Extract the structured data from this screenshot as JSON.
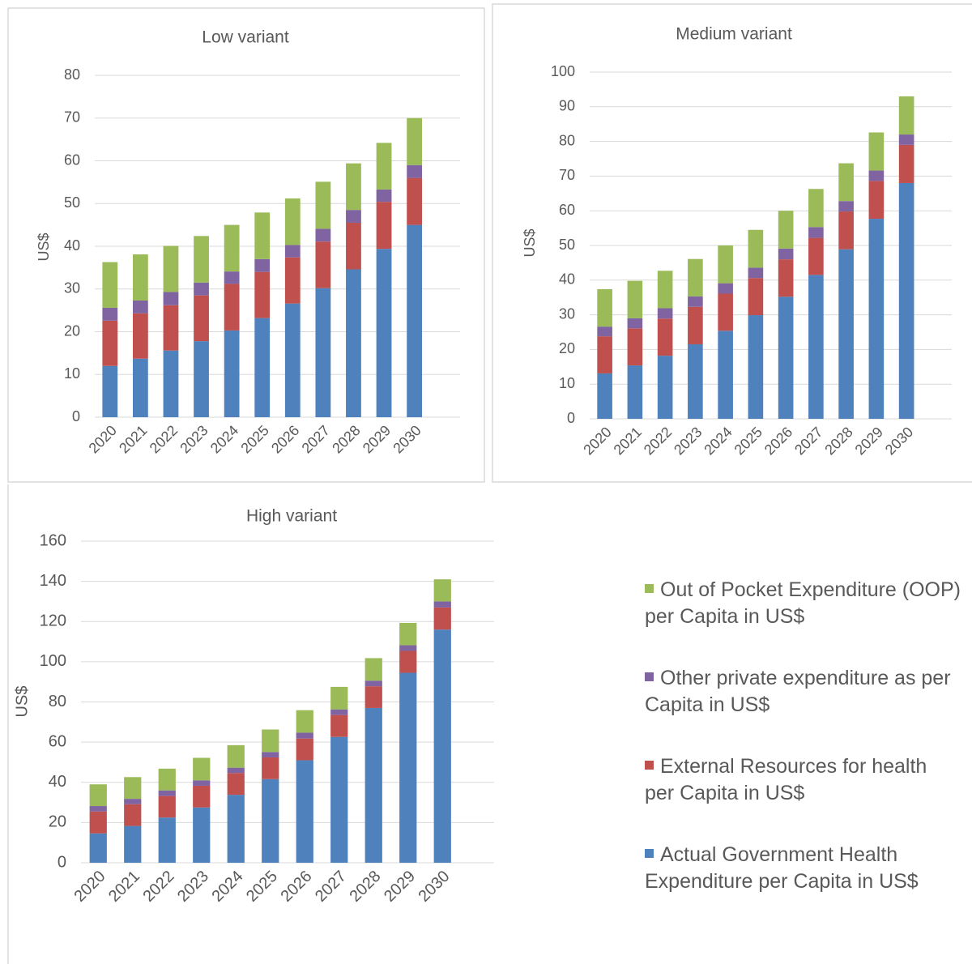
{
  "chart_data": [
    {
      "type": "bar",
      "stacked": true,
      "title": "Low variant",
      "ylabel": "US$",
      "categories": [
        "2020",
        "2021",
        "2022",
        "2023",
        "2024",
        "2025",
        "2026",
        "2027",
        "2028",
        "2029",
        "2030"
      ],
      "series": [
        {
          "color": "#4f81bd",
          "values": [
            12,
            13.7,
            15.6,
            17.8,
            20.3,
            23.2,
            26.6,
            30.2,
            34.6,
            39.4,
            45
          ]
        },
        {
          "color": "#c0504d",
          "values": [
            10.6,
            10.6,
            10.6,
            10.7,
            10.9,
            10.8,
            10.8,
            10.9,
            10.9,
            11,
            11
          ]
        },
        {
          "color": "#8064a2",
          "values": [
            3,
            3,
            3.1,
            3,
            2.9,
            3,
            2.9,
            3,
            3,
            2.9,
            3
          ]
        },
        {
          "color": "#9bbb59",
          "values": [
            10.7,
            10.8,
            10.8,
            10.9,
            10.9,
            10.9,
            10.9,
            11,
            10.9,
            10.9,
            11
          ]
        }
      ],
      "ylim": [
        0,
        80
      ],
      "yticks": [
        0,
        10,
        20,
        30,
        40,
        50,
        60,
        70,
        80
      ],
      "grid": true
    },
    {
      "type": "bar",
      "stacked": true,
      "title": "Medium variant",
      "ylabel": "US$",
      "categories": [
        "2020",
        "2021",
        "2022",
        "2023",
        "2024",
        "2025",
        "2026",
        "2027",
        "2028",
        "2029",
        "2030"
      ],
      "series": [
        {
          "color": "#4f81bd",
          "values": [
            13.1,
            15.4,
            18.2,
            21.5,
            25.4,
            29.9,
            35.2,
            41.5,
            48.9,
            57.7,
            68
          ]
        },
        {
          "color": "#c0504d",
          "values": [
            10.7,
            10.7,
            10.7,
            10.8,
            10.7,
            10.7,
            10.8,
            10.7,
            10.9,
            10.9,
            11
          ]
        },
        {
          "color": "#8064a2",
          "values": [
            2.8,
            2.9,
            3,
            3,
            3,
            3,
            3.1,
            3.1,
            3,
            3,
            3
          ]
        },
        {
          "color": "#9bbb59",
          "values": [
            10.8,
            10.8,
            10.8,
            10.8,
            10.9,
            10.9,
            10.9,
            11,
            10.9,
            11,
            11
          ]
        }
      ],
      "ylim": [
        0,
        100
      ],
      "yticks": [
        0,
        10,
        20,
        30,
        40,
        50,
        60,
        70,
        80,
        90,
        100
      ],
      "grid": true
    },
    {
      "type": "bar",
      "stacked": true,
      "title": "High variant",
      "ylabel": "US$",
      "categories": [
        "2020",
        "2021",
        "2022",
        "2023",
        "2024",
        "2025",
        "2026",
        "2027",
        "2028",
        "2029",
        "2030"
      ],
      "series": [
        {
          "name": "Actual Government Health Expenditure per Capita in US$",
          "color": "#4f81bd",
          "values": [
            14.6,
            18.3,
            22.5,
            27.5,
            33.8,
            41.6,
            51,
            62.6,
            77,
            94.5,
            116
          ]
        },
        {
          "name": "External Resources for health per Capita in US$",
          "color": "#c0504d",
          "values": [
            10.9,
            10.8,
            10.7,
            10.8,
            10.8,
            10.8,
            10.8,
            10.9,
            10.8,
            10.9,
            11
          ]
        },
        {
          "name": "Other private expenditure as per Capita in US$",
          "color": "#8064a2",
          "values": [
            2.7,
            2.7,
            2.8,
            2.7,
            2.7,
            2.7,
            2.9,
            2.8,
            2.8,
            2.8,
            3
          ]
        },
        {
          "name": "Out of Pocket Expenditure (OOP) per Capita in US$",
          "color": "#9bbb59",
          "values": [
            10.8,
            10.8,
            10.8,
            11.2,
            11.2,
            11.2,
            11.2,
            11.2,
            11.2,
            11.1,
            11
          ]
        }
      ],
      "ylim": [
        0,
        160
      ],
      "yticks": [
        0,
        20,
        40,
        60,
        80,
        100,
        120,
        140,
        160
      ],
      "grid": true
    }
  ]
}
